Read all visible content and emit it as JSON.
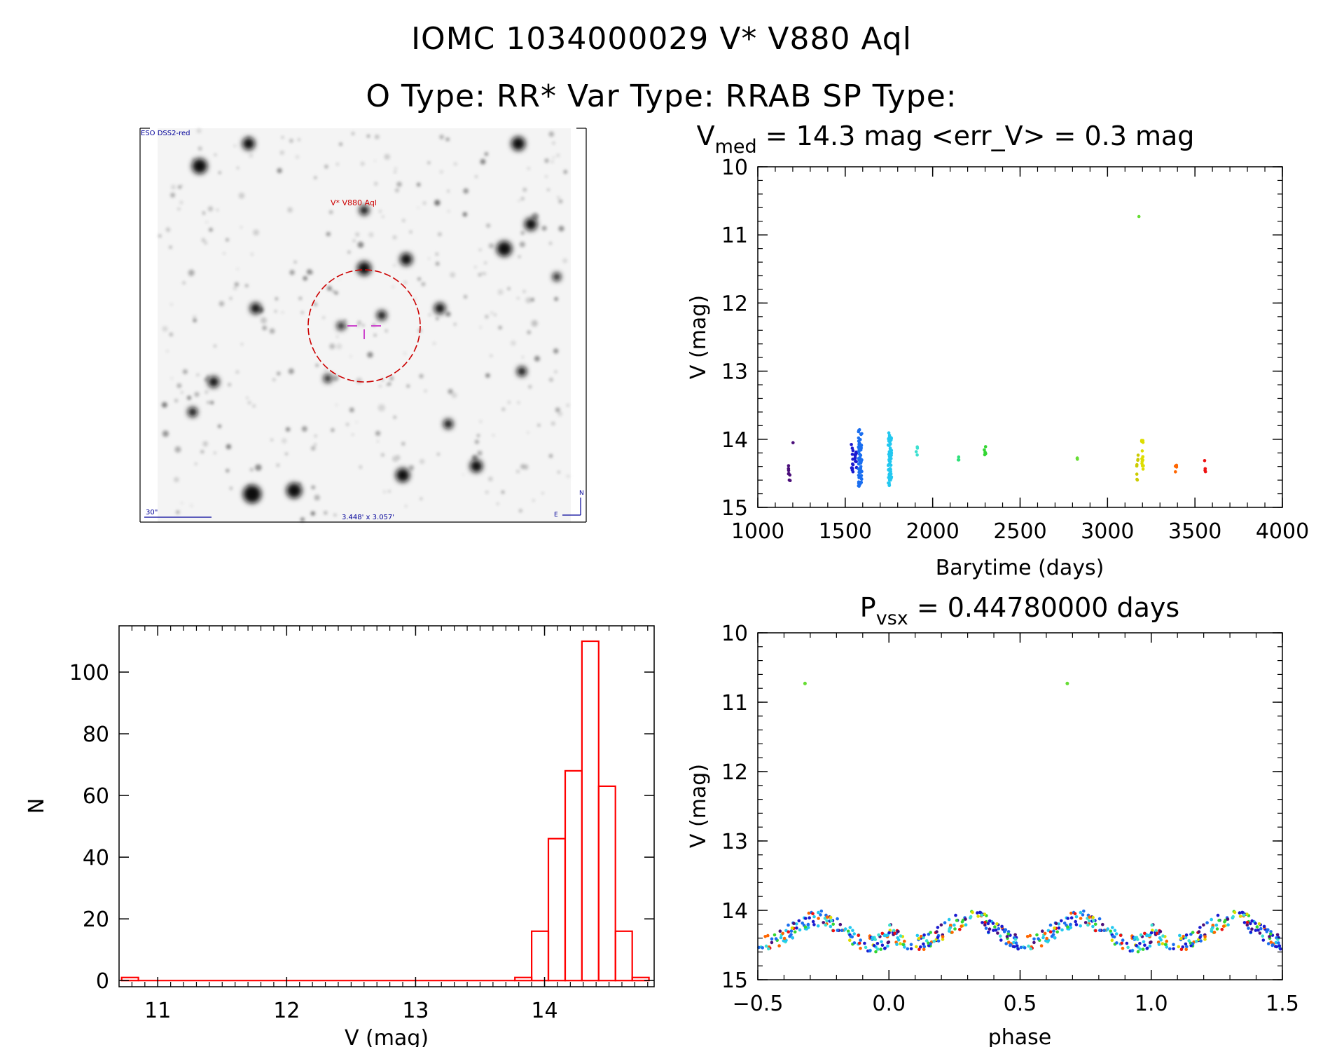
{
  "header": {
    "line1": "IOMC 1034000029    V* V880 Aql",
    "line2": "O Type: RR*  Var Type: RRAB  SP Type:"
  },
  "finding_chart": {
    "survey_label": "ESO DSS2-red",
    "target_label": "V* V880 Aql",
    "scale_label": "30\"",
    "fov_label": "3.448' x 3.057'",
    "north_label": "N",
    "east_label": "E"
  },
  "colors": {
    "histogram": "#ff0000",
    "circle": "#cc0000",
    "crosshair": "#cc44cc",
    "fc_text": "#000099"
  },
  "chart_data": [
    {
      "id": "light_curve",
      "type": "scatter",
      "title_main": "V",
      "title_sub": "med",
      "title_rest": " = 14.3 mag <err_V> = 0.3 mag",
      "xlabel": "Barytime (days)",
      "ylabel": "V (mag)",
      "xlim": [
        1000,
        4000
      ],
      "ylim": [
        15,
        10
      ],
      "y_inverted": true,
      "xticks": [
        1000,
        1500,
        2000,
        2500,
        3000,
        3500,
        4000
      ],
      "yticks": [
        10,
        11,
        12,
        13,
        14,
        15
      ],
      "groups": [
        {
          "x": 1180,
          "ymin": 14.3,
          "ymax": 14.65,
          "n": 8,
          "color": "#4b0f7a"
        },
        {
          "x": 1205,
          "ymin": 14.05,
          "ymax": 14.05,
          "n": 1,
          "color": "#4b0f7a"
        },
        {
          "x": 1540,
          "ymin": 14.05,
          "ymax": 14.5,
          "n": 12,
          "color": "#1a1ad0"
        },
        {
          "x": 1560,
          "ymin": 14.15,
          "ymax": 14.45,
          "n": 10,
          "color": "#1a1ad0"
        },
        {
          "x": 1580,
          "ymin": 13.85,
          "ymax": 14.7,
          "n": 40,
          "color": "#1a6ef0"
        },
        {
          "x": 1590,
          "ymin": 13.9,
          "ymax": 14.65,
          "n": 30,
          "color": "#1a6ef0"
        },
        {
          "x": 1750,
          "ymin": 13.9,
          "ymax": 14.7,
          "n": 35,
          "color": "#22c8f0"
        },
        {
          "x": 1760,
          "ymin": 13.95,
          "ymax": 14.6,
          "n": 30,
          "color": "#22c8f0"
        },
        {
          "x": 1910,
          "ymin": 14.1,
          "ymax": 14.25,
          "n": 4,
          "color": "#3be0d0"
        },
        {
          "x": 2150,
          "ymin": 14.25,
          "ymax": 14.32,
          "n": 3,
          "color": "#2ee07a"
        },
        {
          "x": 2300,
          "ymin": 14.1,
          "ymax": 14.35,
          "n": 6,
          "color": "#33d633"
        },
        {
          "x": 2830,
          "ymin": 14.25,
          "ymax": 14.3,
          "n": 3,
          "color": "#66dd33"
        },
        {
          "x": 3180,
          "ymin": 10.73,
          "ymax": 10.73,
          "n": 1,
          "color": "#66dd33"
        },
        {
          "x": 3170,
          "ymin": 14.1,
          "ymax": 14.6,
          "n": 8,
          "color": "#cccc00"
        },
        {
          "x": 3200,
          "ymin": 13.95,
          "ymax": 14.5,
          "n": 14,
          "color": "#dddd00"
        },
        {
          "x": 3390,
          "ymin": 14.35,
          "ymax": 14.5,
          "n": 6,
          "color": "#ff6600"
        },
        {
          "x": 3560,
          "ymin": 14.3,
          "ymax": 14.5,
          "n": 4,
          "color": "#ee1111"
        }
      ]
    },
    {
      "id": "histogram",
      "type": "bar",
      "xlabel": "V (mag)",
      "ylabel": "N",
      "xlim": [
        10.7,
        14.85
      ],
      "ylim": [
        -2,
        115
      ],
      "xticks": [
        11,
        12,
        13,
        14
      ],
      "yticks": [
        0,
        20,
        40,
        60,
        80,
        100
      ],
      "bin_width": 0.13,
      "bins": [
        {
          "left": 10.72,
          "count": 1
        },
        {
          "left": 13.77,
          "count": 1
        },
        {
          "left": 13.9,
          "count": 16
        },
        {
          "left": 14.03,
          "count": 46
        },
        {
          "left": 14.16,
          "count": 68
        },
        {
          "left": 14.29,
          "count": 110
        },
        {
          "left": 14.42,
          "count": 63
        },
        {
          "left": 14.55,
          "count": 16
        },
        {
          "left": 14.68,
          "count": 1
        }
      ]
    },
    {
      "id": "phased",
      "type": "scatter",
      "title_main": "P",
      "title_sub": "vsx",
      "title_rest": " = 0.44780000 days",
      "xlabel": "phase",
      "ylabel": "V (mag)",
      "xlim": [
        -0.5,
        1.5
      ],
      "ylim": [
        15,
        10
      ],
      "y_inverted": true,
      "xticks": [
        -0.5,
        0.0,
        0.5,
        1.0,
        1.5
      ],
      "xticklabels": [
        "−0.5",
        "0.0",
        "0.5",
        "1.0",
        "1.5"
      ],
      "yticks": [
        10,
        11,
        12,
        13,
        14,
        15
      ],
      "outliers": [
        {
          "x": -0.32,
          "y": 10.73,
          "color": "#66dd33"
        },
        {
          "x": 0.68,
          "y": 10.73,
          "color": "#66dd33"
        }
      ],
      "point_colors": [
        "#1a1ad0",
        "#1a6ef0",
        "#22c8f0",
        "#3be0d0",
        "#1a1ad0",
        "#22c8f0",
        "#1a6ef0",
        "#33d633",
        "#4b0f7a",
        "#dddd00",
        "#ff6600",
        "#ee1111"
      ],
      "curve": {
        "mean": 14.3,
        "amplitude": 0.18,
        "scatter": 0.12,
        "points_per_cycle": 280
      }
    }
  ]
}
